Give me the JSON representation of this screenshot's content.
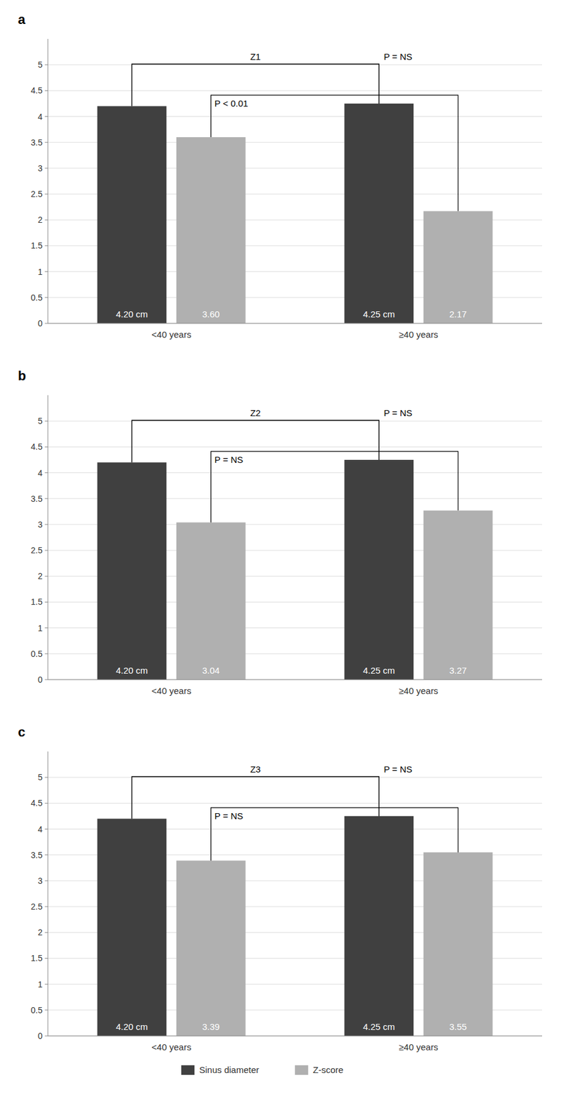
{
  "chart_data": [
    {
      "type": "bar",
      "title": "a",
      "categories": [
        "<40 years",
        "≥40 years"
      ],
      "series": [
        {
          "name": "Sinus diameter",
          "color": "#404040",
          "values": [
            4.2,
            4.25
          ],
          "value_labels": [
            "4.20 cm",
            "4.25 cm"
          ]
        },
        {
          "name": "Z-score",
          "color": "#b0b0b0",
          "values": [
            3.6,
            2.17
          ],
          "value_labels": [
            "3.60",
            "2.17"
          ]
        }
      ],
      "annotations": [
        "Z1",
        "P = NS",
        "P < 0.01"
      ],
      "ylim": [
        0,
        5.5
      ],
      "yticks": [
        0,
        0.5,
        1,
        1.5,
        2,
        2.5,
        3,
        3.5,
        4,
        4.5,
        5
      ],
      "grid": true,
      "data_labels": true
    },
    {
      "type": "bar",
      "title": "b",
      "categories": [
        "<40 years",
        "≥40 years"
      ],
      "series": [
        {
          "name": "Sinus diameter",
          "color": "#404040",
          "values": [
            4.2,
            4.25
          ],
          "value_labels": [
            "4.20 cm",
            "4.25 cm"
          ]
        },
        {
          "name": "Z-score",
          "color": "#b0b0b0",
          "values": [
            3.04,
            3.27
          ],
          "value_labels": [
            "3.04",
            "3.27"
          ]
        }
      ],
      "annotations": [
        "Z2",
        "P = NS",
        "P = NS"
      ],
      "ylim": [
        0,
        5.5
      ],
      "yticks": [
        0,
        0.5,
        1,
        1.5,
        2,
        2.5,
        3,
        3.5,
        4,
        4.5,
        5
      ],
      "grid": true,
      "data_labels": true
    },
    {
      "type": "bar",
      "title": "c",
      "categories": [
        "<40 years",
        "≥40 years"
      ],
      "series": [
        {
          "name": "Sinus diameter",
          "color": "#404040",
          "values": [
            4.2,
            4.25
          ],
          "value_labels": [
            "4.20 cm",
            "4.25 cm"
          ]
        },
        {
          "name": "Z-score",
          "color": "#b0b0b0",
          "values": [
            3.39,
            3.55
          ],
          "value_labels": [
            "3.39",
            "3.55"
          ]
        }
      ],
      "annotations": [
        "Z3",
        "P = NS",
        "P = NS"
      ],
      "ylim": [
        0,
        5.5
      ],
      "yticks": [
        0,
        0.5,
        1,
        1.5,
        2,
        2.5,
        3,
        3.5,
        4,
        4.5,
        5
      ],
      "grid": true,
      "data_labels": true,
      "legend": "bottom"
    }
  ]
}
